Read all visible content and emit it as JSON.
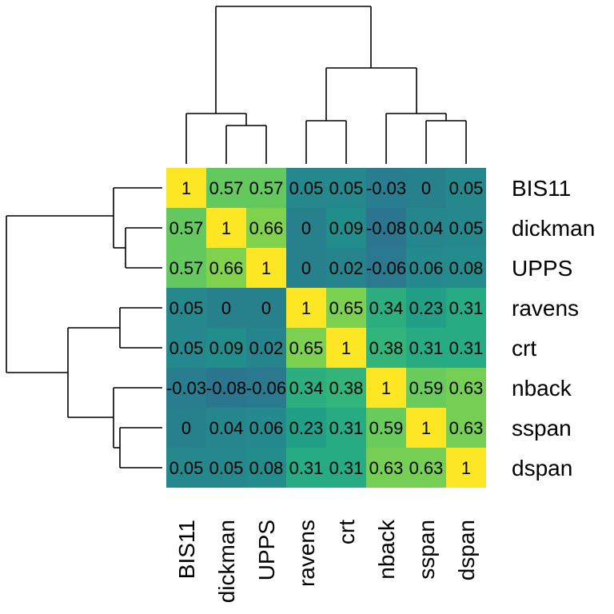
{
  "chart_data": {
    "type": "heatmap",
    "title": "",
    "xlabel": "",
    "ylabel": "",
    "labels": [
      "BIS11",
      "dickman",
      "UPPS",
      "ravens",
      "crt",
      "nback",
      "sspan",
      "dspan"
    ],
    "values": [
      [
        1,
        0.57,
        0.57,
        0.05,
        0.05,
        -0.03,
        0,
        0.05
      ],
      [
        0.57,
        1,
        0.66,
        0,
        0.09,
        -0.08,
        0.04,
        0.05
      ],
      [
        0.57,
        0.66,
        1,
        0,
        0.02,
        -0.06,
        0.06,
        0.08
      ],
      [
        0.05,
        0,
        0,
        1,
        0.65,
        0.34,
        0.23,
        0.31
      ],
      [
        0.05,
        0.09,
        0.02,
        0.65,
        1,
        0.38,
        0.31,
        0.31
      ],
      [
        -0.03,
        -0.08,
        -0.06,
        0.34,
        0.38,
        1,
        0.59,
        0.63
      ],
      [
        0,
        0.04,
        0.06,
        0.23,
        0.31,
        0.59,
        1,
        0.63
      ],
      [
        0.05,
        0.05,
        0.08,
        0.31,
        0.31,
        0.63,
        0.63,
        1
      ]
    ],
    "cell_text": [
      [
        "1",
        "0.57",
        "0.57",
        "0.05",
        "0.05",
        "-0.03",
        "0",
        "0.05"
      ],
      [
        "0.57",
        "1",
        "0.66",
        "0",
        "0.09",
        "-0.08",
        "0.04",
        "0.05"
      ],
      [
        "0.57",
        "0.66",
        "1",
        "0",
        "0.02",
        "-0.06",
        "0.06",
        "0.08"
      ],
      [
        "0.05",
        "0",
        "0",
        "1",
        "0.65",
        "0.34",
        "0.23",
        "0.31"
      ],
      [
        "0.05",
        "0.09",
        "0.02",
        "0.65",
        "1",
        "0.38",
        "0.31",
        "0.31"
      ],
      [
        "-0.03",
        "-0.08",
        "-0.06",
        "0.34",
        "0.38",
        "1",
        "0.59",
        "0.63"
      ],
      [
        "0",
        "0.04",
        "0.06",
        "0.23",
        "0.31",
        "0.59",
        "1",
        "0.63"
      ],
      [
        "0.05",
        "0.05",
        "0.08",
        "0.31",
        "0.31",
        "0.63",
        "0.63",
        "1"
      ]
    ],
    "color_scale": "viridis",
    "value_range": [
      -0.1,
      1
    ],
    "row_dendrogram": true,
    "column_dendrogram": true,
    "legend": "none"
  }
}
